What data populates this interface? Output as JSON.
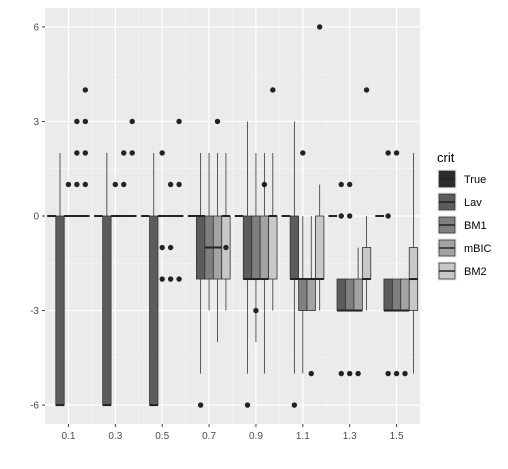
{
  "chart_data": {
    "type": "boxplot",
    "categories": [
      "0.1",
      "0.3",
      "0.5",
      "0.7",
      "0.9",
      "1.1",
      "1.3",
      "1.5"
    ],
    "ylim": [
      -6.6,
      6.6
    ],
    "y_ticks": [
      -6,
      -3,
      0,
      3,
      6
    ],
    "y_tick_labels": [
      "-6",
      "-3",
      "0",
      "3",
      "6"
    ],
    "xlabel": "",
    "ylabel": "",
    "grid": true,
    "legend": {
      "title": "crit",
      "position": "right",
      "labels": [
        "True",
        "Lav",
        "BM1",
        "mBIC",
        "BM2"
      ]
    },
    "series": [
      {
        "name": "True",
        "color": "#2b2b2b",
        "boxes": [
          {
            "q1": 0,
            "median": 0,
            "q3": 0,
            "lo": 0,
            "hi": 0,
            "outliers": []
          },
          {
            "q1": 0,
            "median": 0,
            "q3": 0,
            "lo": 0,
            "hi": 0,
            "outliers": []
          },
          {
            "q1": 0,
            "median": 0,
            "q3": 0,
            "lo": 0,
            "hi": 0,
            "outliers": []
          },
          {
            "q1": 0,
            "median": 0,
            "q3": 0,
            "lo": 0,
            "hi": 0,
            "outliers": []
          },
          {
            "q1": 0,
            "median": 0,
            "q3": 0,
            "lo": 0,
            "hi": 0,
            "outliers": []
          },
          {
            "q1": 0,
            "median": 0,
            "q3": 0,
            "lo": 0,
            "hi": 0,
            "outliers": []
          },
          {
            "q1": 0,
            "median": 0,
            "q3": 0,
            "lo": 0,
            "hi": 0,
            "outliers": []
          },
          {
            "q1": 0,
            "median": 0,
            "q3": 0,
            "lo": 0,
            "hi": 0,
            "outliers": []
          }
        ]
      },
      {
        "name": "Lav",
        "color": "#5c5c5c",
        "boxes": [
          {
            "q1": -6,
            "median": -6,
            "q3": 0,
            "lo": -6,
            "hi": 2,
            "outliers": []
          },
          {
            "q1": -6,
            "median": -6,
            "q3": 0,
            "lo": -6,
            "hi": 2,
            "outliers": []
          },
          {
            "q1": -6,
            "median": -6,
            "q3": 0,
            "lo": -6,
            "hi": 2,
            "outliers": []
          },
          {
            "q1": -2,
            "median": 0,
            "q3": 0,
            "lo": -5,
            "hi": 2,
            "outliers": [
              -6
            ]
          },
          {
            "q1": -2,
            "median": -2,
            "q3": 0,
            "lo": -5,
            "hi": 3,
            "outliers": [
              -6
            ]
          },
          {
            "q1": -2,
            "median": -2,
            "q3": 0,
            "lo": -5,
            "hi": 3,
            "outliers": [
              -6
            ]
          },
          {
            "q1": -3,
            "median": -3,
            "q3": -2,
            "lo": -3,
            "hi": -2,
            "outliers": [
              1,
              0,
              -5
            ]
          },
          {
            "q1": -3,
            "median": -3,
            "q3": -2,
            "lo": -3,
            "hi": -2,
            "outliers": [
              2,
              0,
              -5
            ]
          }
        ]
      },
      {
        "name": "BM1",
        "color": "#7f7f7f",
        "boxes": [
          {
            "q1": 0,
            "median": 0,
            "q3": 0,
            "lo": 0,
            "hi": 0,
            "outliers": [
              1
            ]
          },
          {
            "q1": 0,
            "median": 0,
            "q3": 0,
            "lo": 0,
            "hi": 0,
            "outliers": [
              1
            ]
          },
          {
            "q1": 0,
            "median": 0,
            "q3": 0,
            "lo": 0,
            "hi": 0,
            "outliers": [
              2,
              -1,
              -2
            ]
          },
          {
            "q1": -2,
            "median": -1,
            "q3": 0,
            "lo": -3,
            "hi": 2,
            "outliers": []
          },
          {
            "q1": -2,
            "median": -2,
            "q3": 0,
            "lo": -4,
            "hi": 2,
            "outliers": [
              -3
            ]
          },
          {
            "q1": -3,
            "median": -2,
            "q3": -2,
            "lo": -5,
            "hi": 0,
            "outliers": [
              2
            ]
          },
          {
            "q1": -3,
            "median": -3,
            "q3": -2,
            "lo": -3,
            "hi": -2,
            "outliers": [
              1,
              0,
              -5
            ]
          },
          {
            "q1": -3,
            "median": -3,
            "q3": -2,
            "lo": -3,
            "hi": -2,
            "outliers": [
              2,
              -5
            ]
          }
        ]
      },
      {
        "name": "mBIC",
        "color": "#a3a3a3",
        "boxes": [
          {
            "q1": 0,
            "median": 0,
            "q3": 0,
            "lo": 0,
            "hi": 0,
            "outliers": [
              1,
              2,
              3
            ]
          },
          {
            "q1": 0,
            "median": 0,
            "q3": 0,
            "lo": 0,
            "hi": 0,
            "outliers": [
              1,
              2
            ]
          },
          {
            "q1": 0,
            "median": 0,
            "q3": 0,
            "lo": 0,
            "hi": 0,
            "outliers": [
              1,
              -1,
              -2
            ]
          },
          {
            "q1": -2,
            "median": -1,
            "q3": 0,
            "lo": -4,
            "hi": 2,
            "outliers": [
              3
            ]
          },
          {
            "q1": -2,
            "median": -2,
            "q3": 0,
            "lo": -5,
            "hi": 2,
            "outliers": [
              1
            ]
          },
          {
            "q1": -3,
            "median": -2,
            "q3": -2,
            "lo": -3,
            "hi": 0,
            "outliers": [
              -5
            ]
          },
          {
            "q1": -3,
            "median": -3,
            "q3": -2,
            "lo": -3,
            "hi": -1,
            "outliers": [
              -5
            ]
          },
          {
            "q1": -3,
            "median": -3,
            "q3": -2,
            "lo": -3,
            "hi": -2,
            "outliers": [
              -5
            ]
          }
        ]
      },
      {
        "name": "BM2",
        "color": "#c8c8c8",
        "boxes": [
          {
            "q1": 0,
            "median": 0,
            "q3": 0,
            "lo": 0,
            "hi": 0,
            "outliers": [
              4,
              3,
              2,
              1
            ]
          },
          {
            "q1": 0,
            "median": 0,
            "q3": 0,
            "lo": 0,
            "hi": 0,
            "outliers": [
              3,
              2
            ]
          },
          {
            "q1": 0,
            "median": 0,
            "q3": 0,
            "lo": 0,
            "hi": 0,
            "outliers": [
              3,
              1,
              -2
            ]
          },
          {
            "q1": -2,
            "median": 0,
            "q3": 0,
            "lo": -3,
            "hi": 2,
            "outliers": [
              -1
            ]
          },
          {
            "q1": -2,
            "median": 0,
            "q3": 0,
            "lo": -3,
            "hi": 2,
            "outliers": [
              4
            ]
          },
          {
            "q1": -2,
            "median": -2,
            "q3": 0,
            "lo": -3,
            "hi": 1,
            "outliers": [
              6
            ]
          },
          {
            "q1": -2,
            "median": -2,
            "q3": -1,
            "lo": -3,
            "hi": 0,
            "outliers": [
              4
            ]
          },
          {
            "q1": -3,
            "median": -2,
            "q3": -1,
            "lo": -5,
            "hi": 2,
            "outliers": []
          }
        ]
      }
    ]
  }
}
